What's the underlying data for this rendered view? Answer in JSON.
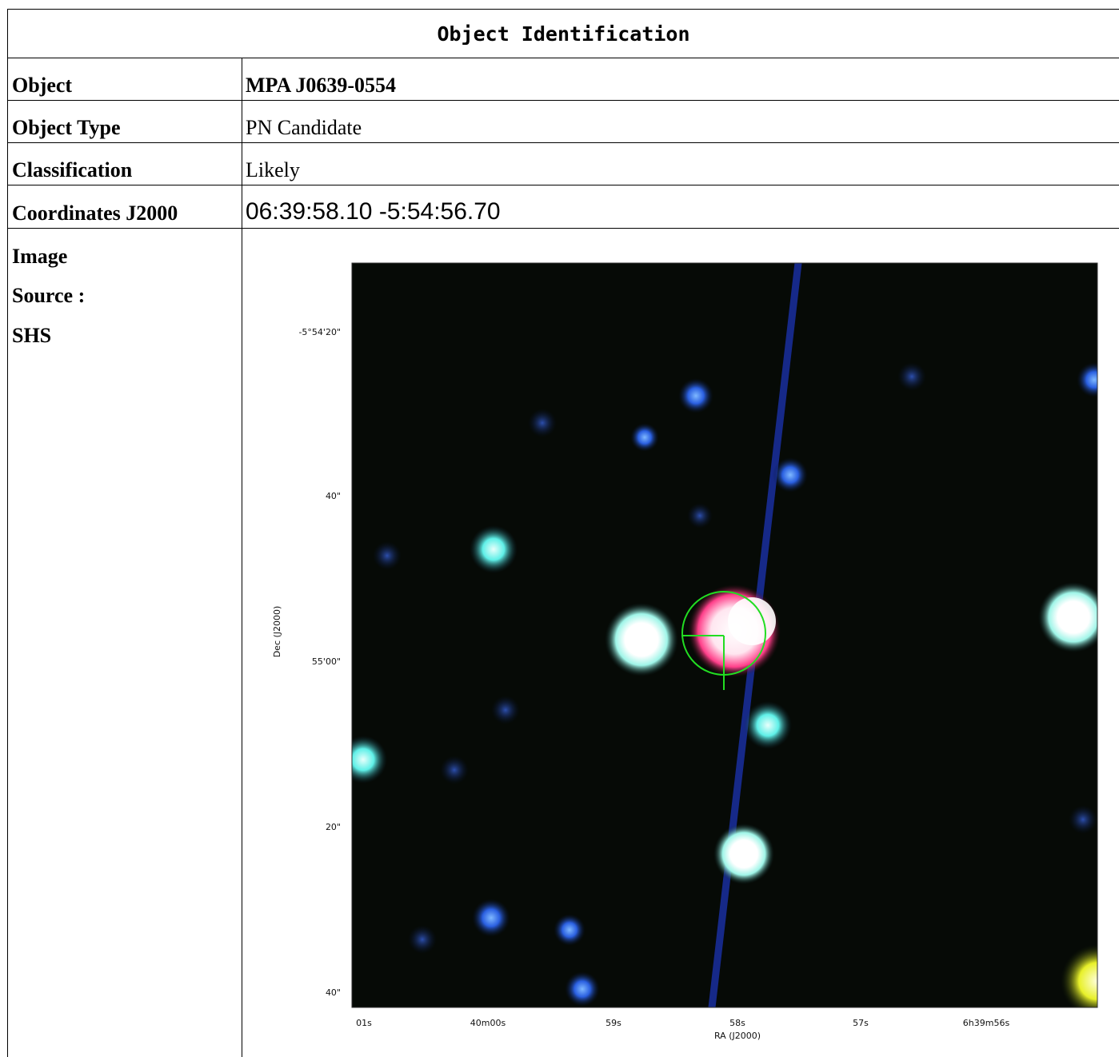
{
  "header": {
    "title": "Object Identification"
  },
  "rows": [
    {
      "label": "Object",
      "value": "MPA J0639-0554"
    },
    {
      "label": "Object Type",
      "value": "PN Candidate"
    },
    {
      "label": "Classification",
      "value": "Likely"
    },
    {
      "label": "Coordinates J2000",
      "value": "06:39:58.10 -5:54:56.70"
    }
  ],
  "image_label": {
    "line1": "Image",
    "line2": "Source :",
    "line3": "SHS"
  },
  "figure": {
    "ylabel": "Dec (J2000)",
    "xlabel": "RA (J2000)",
    "yticks": [
      "-5°54'20\"",
      "40\"",
      "55'00\"",
      "20\"",
      "40\""
    ],
    "xticks": [
      "01s",
      "40m00s",
      "59s",
      "58s",
      "57s",
      "6h39m56s"
    ],
    "colors": {
      "background": "#060a06",
      "marker": "#22dd22",
      "streak": "#1a2fa0"
    }
  }
}
